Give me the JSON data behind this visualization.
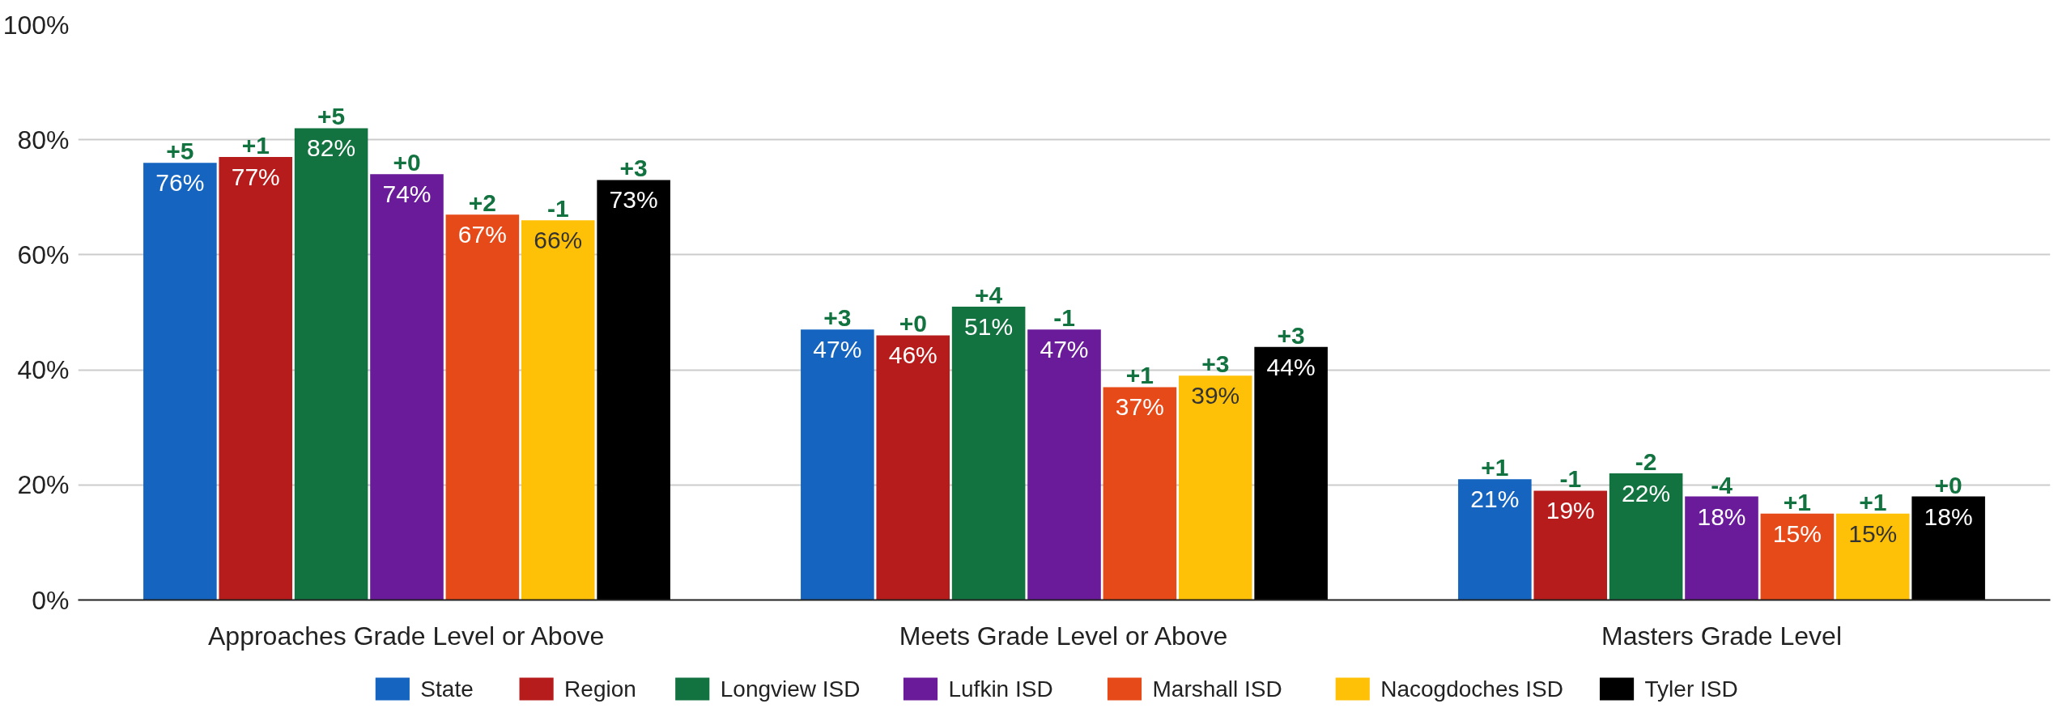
{
  "chart_data": {
    "type": "bar",
    "categories": [
      "Approaches Grade Level or Above",
      "Meets Grade Level or Above",
      "Masters Grade Level"
    ],
    "series": [
      {
        "name": "State",
        "color": "#1565c0",
        "values": [
          76,
          47,
          21
        ],
        "value_labels": [
          "76%",
          "47%",
          "21%"
        ]
      },
      {
        "name": "Region",
        "color": "#b71c1c",
        "values": [
          77,
          46,
          19
        ],
        "value_labels": [
          "77%",
          "46%",
          "19%"
        ]
      },
      {
        "name": "Longview ISD",
        "color": "#137340",
        "values": [
          82,
          51,
          22
        ],
        "value_labels": [
          "82%",
          "51%",
          "22%"
        ]
      },
      {
        "name": "Lufkin ISD",
        "color": "#6a1b9a",
        "values": [
          74,
          47,
          18
        ],
        "value_labels": [
          "74%",
          "47%",
          "18%"
        ]
      },
      {
        "name": "Marshall ISD",
        "color": "#e64a19",
        "values": [
          67,
          37,
          15
        ],
        "value_labels": [
          "67%",
          "37%",
          "15%"
        ]
      },
      {
        "name": "Nacogdoches ISD",
        "color": "#ffc107",
        "values": [
          66,
          39,
          15
        ],
        "value_labels": [
          "66%",
          "39%",
          "15%"
        ]
      },
      {
        "name": "Tyler ISD",
        "color": "#000000",
        "values": [
          73,
          44,
          18
        ],
        "value_labels": [
          "73%",
          "44%",
          "18%"
        ]
      }
    ],
    "annotations": [
      "+5",
      "+1",
      "+5",
      "+0",
      "+2",
      "-1",
      "+3",
      "+3",
      "+0",
      "+4",
      "-1",
      "+1",
      "+3",
      "+3",
      "+1",
      "-1",
      "-2",
      "-4",
      "+1",
      "+1",
      "+0"
    ],
    "ylim": [
      0,
      100
    ],
    "yticks": [
      {
        "value": 0,
        "label": "0%"
      },
      {
        "value": 20,
        "label": "20%"
      },
      {
        "value": 40,
        "label": "40%"
      },
      {
        "value": 60,
        "label": "60%"
      },
      {
        "value": 80,
        "label": "80%"
      },
      {
        "value": 100,
        "label": "100%"
      }
    ],
    "grid": "y",
    "legend": "bottom"
  }
}
